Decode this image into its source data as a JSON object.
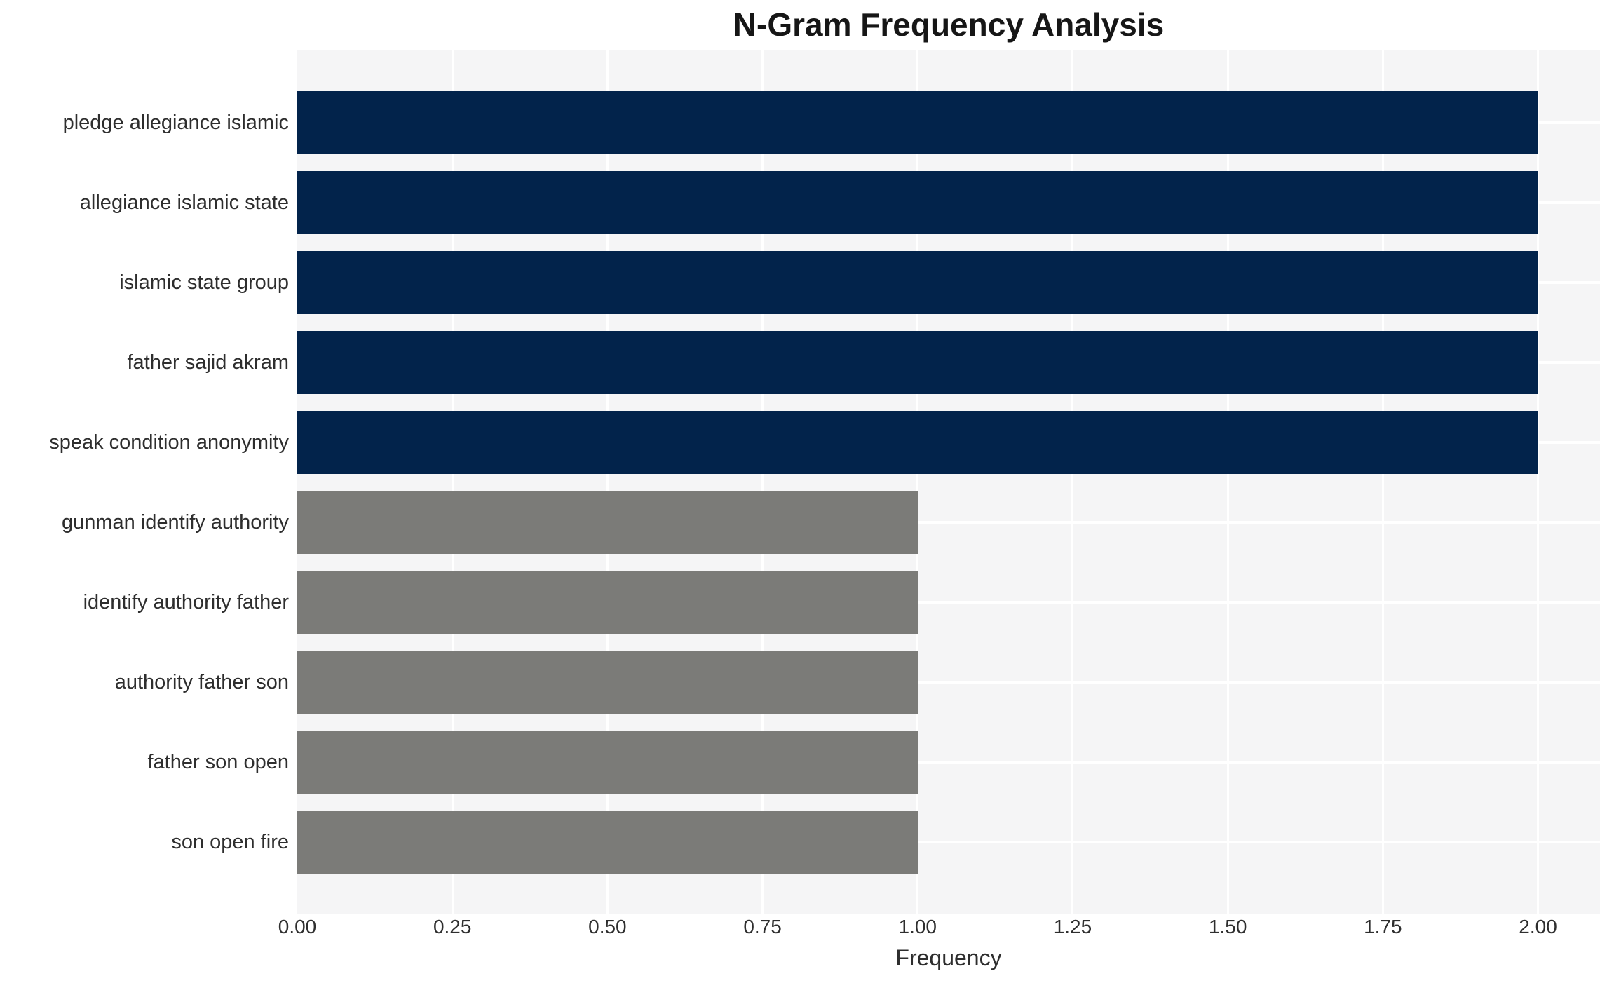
{
  "chart_data": {
    "type": "bar",
    "orientation": "horizontal",
    "title": "N-Gram Frequency Analysis",
    "xlabel": "Frequency",
    "ylabel": "",
    "categories": [
      "pledge allegiance islamic",
      "allegiance islamic state",
      "islamic state group",
      "father sajid akram",
      "speak condition anonymity",
      "gunman identify authority",
      "identify authority father",
      "authority father son",
      "father son open",
      "son open fire"
    ],
    "values": [
      2,
      2,
      2,
      2,
      2,
      1,
      1,
      1,
      1,
      1
    ],
    "bar_colors": [
      "#02234b",
      "#02234b",
      "#02234b",
      "#02234b",
      "#02234b",
      "#7b7b78",
      "#7b7b78",
      "#7b7b78",
      "#7b7b78",
      "#7b7b78"
    ],
    "xlim": [
      0,
      2.1
    ],
    "xticks": [
      0,
      0.25,
      0.5,
      0.75,
      1.0,
      1.25,
      1.5,
      1.75,
      2.0
    ],
    "xtick_labels": [
      "0.00",
      "0.25",
      "0.50",
      "0.75",
      "1.00",
      "1.25",
      "1.50",
      "1.75",
      "2.00"
    ],
    "grid": true,
    "legend": false,
    "colors": {
      "bar_high": "#02234b",
      "bar_low": "#7b7b78",
      "plot_bg": "#f5f5f6",
      "grid": "#ffffff",
      "text": "#2e2e2e",
      "title": "#161616"
    }
  }
}
